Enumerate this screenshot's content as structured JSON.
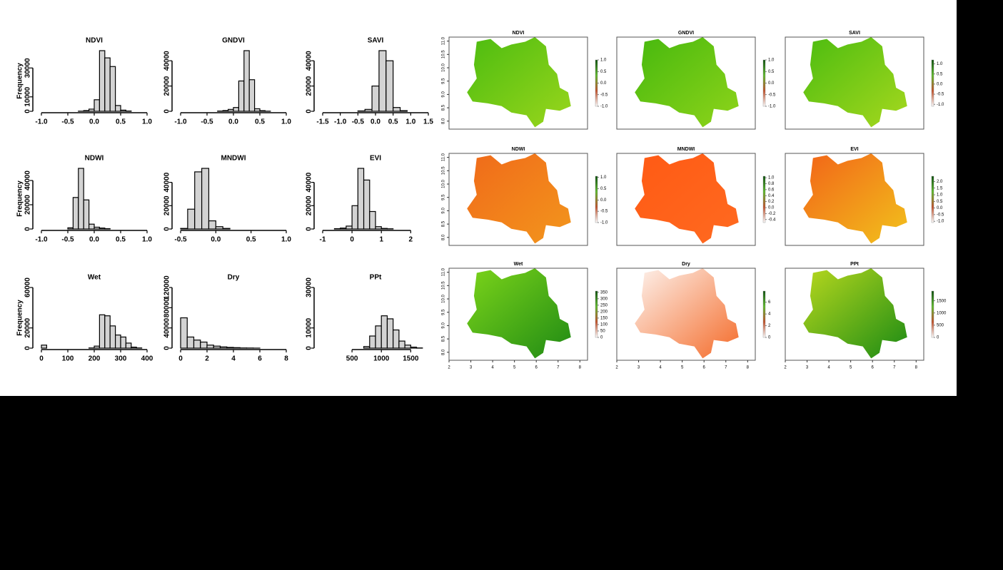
{
  "chart_data": [
    {
      "type": "histogram",
      "title": "NDVI",
      "ylabel": "Frequency",
      "color": "#d3d3d3",
      "bins": [
        -1.0,
        -0.9,
        -0.8,
        -0.7,
        -0.6,
        -0.5,
        -0.4,
        -0.3,
        -0.2,
        -0.1,
        0.0,
        0.1,
        0.2,
        0.3,
        0.4,
        0.5,
        0.6,
        0.7,
        0.8,
        0.9,
        1.0
      ],
      "values": [
        0,
        0,
        0,
        0,
        0,
        0,
        0,
        100,
        500,
        1500,
        8000,
        42000,
        37000,
        31000,
        4000,
        800,
        200,
        0,
        0,
        0
      ],
      "xlim": [
        -1,
        1
      ],
      "xticks": [
        {
          "value": -1,
          "label": "-1.0"
        },
        -0.5,
        {
          "value": 0,
          "label": "0.0"
        },
        0.5,
        {
          "value": 1,
          "label": "1.0"
        }
      ],
      "ylim": [
        0,
        42000
      ],
      "yticks": [
        0,
        10000,
        30000
      ]
    },
    {
      "type": "histogram",
      "title": "GNDVI",
      "color": "#d3d3d3",
      "bins": [
        -1.0,
        -0.9,
        -0.8,
        -0.7,
        -0.6,
        -0.5,
        -0.4,
        -0.3,
        -0.2,
        -0.1,
        0.0,
        0.1,
        0.2,
        0.3,
        0.4,
        0.5,
        0.6,
        0.7,
        0.8,
        0.9,
        1.0
      ],
      "values": [
        0,
        0,
        0,
        0,
        0,
        0,
        0,
        200,
        600,
        1500,
        3000,
        24000,
        48000,
        25000,
        2000,
        500,
        100,
        0,
        0,
        0
      ],
      "xlim": [
        -1,
        1
      ],
      "xticks": [
        {
          "value": -1,
          "label": "-1.0"
        },
        -0.5,
        {
          "value": 0,
          "label": "0.0"
        },
        0.5,
        {
          "value": 1,
          "label": "1.0"
        }
      ],
      "ylim": [
        0,
        48000
      ],
      "yticks": [
        0,
        20000,
        40000
      ]
    },
    {
      "type": "histogram",
      "title": "SAVI",
      "color": "#d3d3d3",
      "bins": [
        -1.5,
        -1.3,
        -1.1,
        -0.9,
        -0.7,
        -0.5,
        -0.3,
        -0.1,
        0.1,
        0.3,
        0.5,
        0.7,
        0.9,
        1.1,
        1.3,
        1.5
      ],
      "values": [
        0,
        0,
        0,
        0,
        0,
        300,
        1500,
        20000,
        48000,
        40000,
        3000,
        500,
        0,
        0,
        0
      ],
      "xlim": [
        -1.5,
        1.5
      ],
      "xticks": [
        -1.5,
        {
          "value": -1,
          "label": "-1.0"
        },
        -0.5,
        {
          "value": 0,
          "label": "0.0"
        },
        0.5,
        {
          "value": 1,
          "label": "1.0"
        },
        1.5
      ],
      "ylim": [
        0,
        48000
      ],
      "yticks": [
        0,
        20000,
        40000
      ]
    },
    {
      "type": "histogram",
      "title": "NDWI",
      "ylabel": "Frequency",
      "color": "#d3d3d3",
      "bins": [
        -1.0,
        -0.9,
        -0.8,
        -0.7,
        -0.6,
        -0.5,
        -0.4,
        -0.3,
        -0.2,
        -0.1,
        0.0,
        0.1,
        0.2,
        0.3,
        0.4,
        0.5,
        0.6,
        0.7,
        0.8,
        0.9,
        1.0
      ],
      "values": [
        0,
        0,
        0,
        0,
        0,
        1000,
        26000,
        50000,
        24000,
        4000,
        1500,
        800,
        300,
        0,
        0,
        0,
        0,
        0,
        0,
        0
      ],
      "xlim": [
        -1,
        1
      ],
      "xticks": [
        {
          "value": -1,
          "label": "-1.0"
        },
        -0.5,
        {
          "value": 0,
          "label": "0.0"
        },
        0.5,
        {
          "value": 1,
          "label": "1.0"
        }
      ],
      "ylim": [
        0,
        50000
      ],
      "yticks": [
        0,
        20000,
        40000
      ]
    },
    {
      "type": "histogram",
      "title": "MNDWI",
      "color": "#d3d3d3",
      "bins": [
        -0.5,
        -0.4,
        -0.3,
        -0.2,
        -0.1,
        0.0,
        0.1,
        0.2,
        0.3,
        0.4,
        0.5,
        0.6,
        0.7,
        0.8,
        0.9,
        1.0
      ],
      "values": [
        500,
        17000,
        49000,
        52000,
        7000,
        2000,
        500,
        0,
        0,
        0,
        0,
        0,
        0,
        0,
        0
      ],
      "xlim": [
        -0.5,
        1
      ],
      "xticks": [
        -0.5,
        {
          "value": 0,
          "label": "0.0"
        },
        0.5,
        {
          "value": 1,
          "label": "1.0"
        }
      ],
      "ylim": [
        0,
        52000
      ],
      "yticks": [
        0,
        20000,
        40000
      ]
    },
    {
      "type": "histogram",
      "title": "EVI",
      "color": "#d3d3d3",
      "bins": [
        -1.0,
        -0.8,
        -0.6,
        -0.4,
        -0.2,
        0.0,
        0.2,
        0.4,
        0.6,
        0.8,
        1.0,
        1.2,
        1.4,
        1.6,
        1.8,
        2.0,
        2.2,
        2.4,
        2.6
      ],
      "values": [
        0,
        0,
        300,
        800,
        2500,
        20000,
        52000,
        42000,
        15000,
        2000,
        500,
        200,
        0,
        0,
        0,
        0,
        0,
        0
      ],
      "xlim": [
        -1,
        2.6
      ],
      "xticks": [
        -1,
        0,
        1,
        2
      ],
      "ylim": [
        0,
        52000
      ],
      "yticks": [
        0,
        20000,
        40000
      ]
    },
    {
      "type": "histogram",
      "title": "Wet",
      "ylabel": "Frequency",
      "color": "#d3d3d3",
      "bins": [
        0,
        20,
        40,
        60,
        80,
        100,
        120,
        140,
        160,
        180,
        200,
        220,
        240,
        260,
        280,
        300,
        320,
        340,
        360,
        380,
        400
      ],
      "values": [
        3000,
        0,
        0,
        0,
        0,
        0,
        0,
        0,
        0,
        200,
        2000,
        33000,
        32000,
        22000,
        13000,
        11000,
        5000,
        1000,
        200,
        0
      ],
      "xlim": [
        0,
        400
      ],
      "xticks": [
        0,
        100,
        200,
        300,
        400
      ],
      "ylim": [
        0,
        60000
      ],
      "yticks": [
        0,
        20000,
        60000
      ]
    },
    {
      "type": "histogram",
      "title": "Dry",
      "color": "#d3d3d3",
      "bins": [
        0,
        0.5,
        1,
        1.5,
        2,
        2.5,
        3,
        3.5,
        4,
        4.5,
        5,
        5.5,
        6,
        6.5,
        7,
        7.5,
        8
      ],
      "values": [
        60000,
        22000,
        16000,
        12000,
        6000,
        4000,
        2500,
        1500,
        1000,
        400,
        300,
        100,
        0,
        0,
        0,
        0
      ],
      "xlim": [
        0,
        8
      ],
      "xticks": [
        0,
        2,
        4,
        6,
        8
      ],
      "ylim": [
        0,
        120000
      ],
      "yticks": [
        0,
        40000,
        80000,
        120000
      ]
    },
    {
      "type": "histogram",
      "title": "PPt",
      "color": "#d3d3d3",
      "bins": [
        0,
        100,
        200,
        300,
        400,
        500,
        600,
        700,
        800,
        900,
        1000,
        1100,
        1200,
        1300,
        1400,
        1500,
        1600,
        1700,
        1800
      ],
      "values": [
        0,
        0,
        0,
        0,
        0,
        0,
        0,
        800,
        6000,
        11000,
        16000,
        14500,
        9000,
        3500,
        1500,
        500,
        100,
        0
      ],
      "xlim": [
        0,
        1800
      ],
      "xticks": [
        500,
        1000,
        1500
      ],
      "ylim": [
        0,
        30000
      ],
      "yticks": [
        0,
        10000,
        30000
      ]
    },
    {
      "type": "map",
      "title": "NDVI",
      "xlim": [
        2,
        8.35
      ],
      "ylim": [
        7.7,
        11.15
      ],
      "yticks": [
        {
          "value": 8,
          "label": "8.0"
        },
        8.5,
        {
          "value": 9,
          "label": "9.0"
        },
        9.5,
        {
          "value": 10,
          "label": "10.0"
        },
        10.5,
        {
          "value": 11,
          "label": "11.0"
        }
      ],
      "land_colors": [
        "#4cbc10",
        "#9ad61c"
      ],
      "palette": [
        "#ffffff",
        "#c0502a",
        "#5cb82a",
        "#0b4f0b"
      ],
      "legend_lim": [
        -1,
        1
      ],
      "legend_ticks": [
        {
          "value": 1,
          "label": "1.0"
        },
        0.5,
        {
          "value": 0,
          "label": "0.0"
        },
        -0.5,
        {
          "value": -1,
          "label": "-1.0"
        }
      ]
    },
    {
      "type": "map",
      "title": "GNDVI",
      "xlim": [
        2,
        8.35
      ],
      "ylim": [
        7.7,
        11.15
      ],
      "land_colors": [
        "#46b80e",
        "#8fd41a"
      ],
      "palette": [
        "#ffffff",
        "#c0502a",
        "#5cb82a",
        "#0b4f0b"
      ],
      "legend_lim": [
        -1,
        1
      ],
      "legend_ticks": [
        {
          "value": 1,
          "label": "1.0"
        },
        0.5,
        {
          "value": 0,
          "label": "0.0"
        },
        -0.5,
        {
          "value": -1,
          "label": "-1.0"
        }
      ]
    },
    {
      "type": "map",
      "title": "SAVI",
      "xlim": [
        2,
        8.35
      ],
      "ylim": [
        7.7,
        11.15
      ],
      "land_colors": [
        "#4cbc10",
        "#a6d81e"
      ],
      "palette": [
        "#ffffff",
        "#c0502a",
        "#5cb82a",
        "#0b4f0b"
      ],
      "legend_lim": [
        -1.1,
        1.2
      ],
      "legend_ticks": [
        {
          "value": 1,
          "label": "1.0"
        },
        0.5,
        {
          "value": 0,
          "label": "0.0"
        },
        -0.5,
        {
          "value": -1,
          "label": "-1.0"
        }
      ]
    },
    {
      "type": "map",
      "title": "NDWI",
      "xlim": [
        2,
        8.35
      ],
      "ylim": [
        7.7,
        11.15
      ],
      "yticks": [
        {
          "value": 8,
          "label": "8.0"
        },
        8.5,
        {
          "value": 9,
          "label": "9.0"
        },
        9.5,
        {
          "value": 10,
          "label": "10.0"
        },
        10.5,
        {
          "value": 11,
          "label": "11.0"
        }
      ],
      "land_colors": [
        "#f06a1a",
        "#f3961c"
      ],
      "palette": [
        "#ffffff",
        "#c0502a",
        "#5cb82a",
        "#0b4f0b"
      ],
      "legend_lim": [
        -1,
        1.05
      ],
      "legend_ticks": [
        {
          "value": 1,
          "label": "1.0"
        },
        0.5,
        {
          "value": 0,
          "label": "0.0"
        },
        -0.5,
        {
          "value": -1,
          "label": "-1.0"
        }
      ]
    },
    {
      "type": "map",
      "title": "MNDWI",
      "xlim": [
        2,
        8.35
      ],
      "ylim": [
        7.7,
        11.15
      ],
      "land_colors": [
        "#ff5a14",
        "#ff6a20"
      ],
      "palette": [
        "#ffffff",
        "#c0502a",
        "#5cb82a",
        "#0b4f0b"
      ],
      "legend_lim": [
        -0.5,
        1.05
      ],
      "legend_ticks": [
        {
          "value": 1,
          "label": "1.0"
        },
        0.8,
        0.6,
        0.4,
        0.2,
        {
          "value": 0,
          "label": "0.0"
        },
        -0.2,
        -0.4
      ]
    },
    {
      "type": "map",
      "title": "EVI",
      "xlim": [
        2,
        8.35
      ],
      "ylim": [
        7.7,
        11.15
      ],
      "land_colors": [
        "#f26418",
        "#f2c21c"
      ],
      "palette": [
        "#ffffff",
        "#c0502a",
        "#5cb82a",
        "#0b4f0b"
      ],
      "legend_lim": [
        -1.1,
        2.4
      ],
      "legend_ticks": [
        {
          "value": 2,
          "label": "2.0"
        },
        1.5,
        {
          "value": 1,
          "label": "1.0"
        },
        0.5,
        {
          "value": 0,
          "label": "0.0"
        },
        -0.5,
        {
          "value": -1,
          "label": "-1.0"
        }
      ]
    },
    {
      "type": "map",
      "title": "Wet",
      "xlim": [
        2,
        8.35
      ],
      "ylim": [
        7.7,
        11.15
      ],
      "yticks": [
        {
          "value": 8,
          "label": "8.0"
        },
        8.5,
        {
          "value": 9,
          "label": "9.0"
        },
        9.5,
        {
          "value": 10,
          "label": "10.0"
        },
        10.5,
        {
          "value": 11,
          "label": "11.0"
        }
      ],
      "xticks": [
        2,
        3,
        4,
        5,
        6,
        7,
        8
      ],
      "land_colors": [
        "#7cd41a",
        "#1f8a14"
      ],
      "palette": [
        "#ffffff",
        "#c0502a",
        "#5cb82a",
        "#0b4f0b"
      ],
      "legend_lim": [
        0,
        360
      ],
      "legend_ticks": [
        350,
        300,
        250,
        200,
        150,
        100,
        50,
        0
      ]
    },
    {
      "type": "map",
      "title": "Dry",
      "xlim": [
        2,
        8.35
      ],
      "ylim": [
        7.7,
        11.15
      ],
      "xticks": [
        2,
        3,
        4,
        5,
        6,
        7,
        8
      ],
      "land_colors": [
        "#fdf3ee",
        "#f46a28"
      ],
      "palette": [
        "#ffffff",
        "#c0502a",
        "#5cb82a",
        "#0b4f0b"
      ],
      "legend_lim": [
        0,
        7.9
      ],
      "legend_ticks": [
        6,
        4,
        2,
        0
      ]
    },
    {
      "type": "map",
      "title": "PPt",
      "xlim": [
        2,
        8.35
      ],
      "ylim": [
        7.7,
        11.15
      ],
      "xticks": [
        2,
        3,
        4,
        5,
        6,
        7,
        8
      ],
      "land_colors": [
        "#b8d81e",
        "#1a8a14"
      ],
      "palette": [
        "#ffffff",
        "#c0502a",
        "#5cb82a",
        "#0b4f0b"
      ],
      "legend_lim": [
        0,
        1900
      ],
      "legend_ticks": [
        1500,
        1000,
        500,
        0
      ]
    }
  ]
}
